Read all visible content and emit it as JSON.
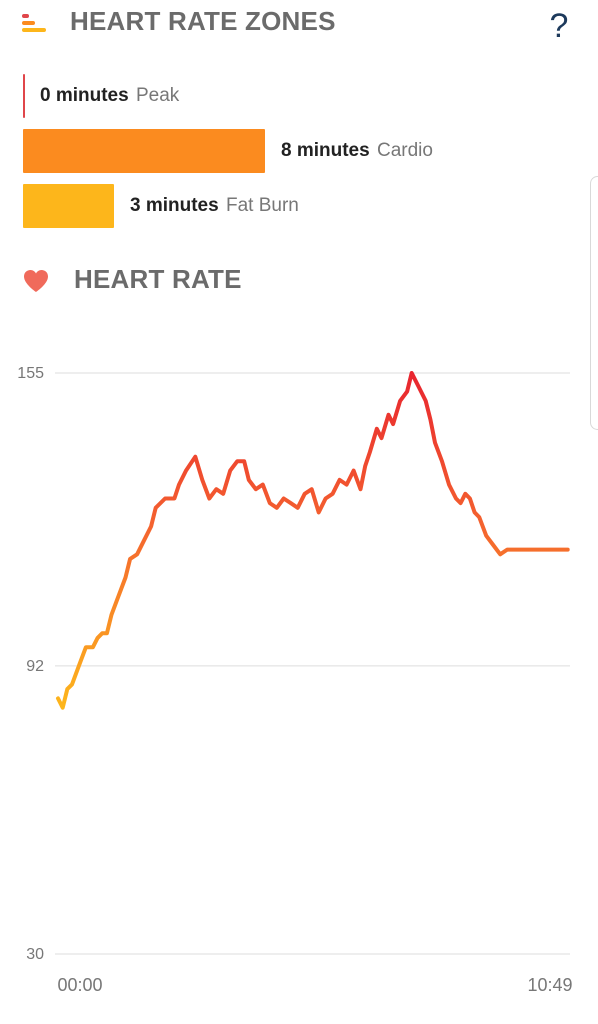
{
  "zones_section": {
    "title": "HEART RATE ZONES",
    "help_label": "?",
    "icon": "zones-icon",
    "zones": [
      {
        "minutes_label": "0 minutes",
        "name": "Peak",
        "minutes": 0,
        "color": "#e0464a"
      },
      {
        "minutes_label": "8 minutes",
        "name": "Cardio",
        "minutes": 8,
        "color": "#fb8b1f"
      },
      {
        "minutes_label": "3 minutes",
        "name": "Fat Burn",
        "minutes": 3,
        "color": "#fdb61b"
      }
    ]
  },
  "heart_section": {
    "title": "HEART RATE",
    "icon": "heart-icon"
  },
  "chart_data": {
    "type": "line",
    "title": "",
    "xlabel": "",
    "ylabel": "",
    "ylim": [
      30,
      155
    ],
    "y_ticks": [
      "155",
      "92",
      "30"
    ],
    "y_tick_values": [
      155,
      92,
      30
    ],
    "x_tick_labels": [
      "00:00",
      "10:49"
    ],
    "x_range_minutes": [
      0,
      11
    ],
    "grid": "horizontal",
    "colors": {
      "low": "#fdb61b",
      "mid": "#f4622f",
      "high": "#e8252f"
    },
    "series": [
      {
        "x": [
          0,
          0.1,
          0.2,
          0.3,
          0.45,
          0.6,
          0.75,
          0.85,
          0.95,
          1.05,
          1.15,
          1.3,
          1.45,
          1.55,
          1.7,
          1.85,
          2.0,
          2.1,
          2.3,
          2.5,
          2.6,
          2.75,
          2.95,
          3.1,
          3.25,
          3.4,
          3.55,
          3.7,
          3.85,
          4.0,
          4.1,
          4.25,
          4.4,
          4.55,
          4.7,
          4.85,
          5.0,
          5.15,
          5.3,
          5.45,
          5.6,
          5.75,
          5.9,
          6.05,
          6.2,
          6.35,
          6.5,
          6.6,
          6.7,
          6.85,
          6.95,
          7.1,
          7.2,
          7.35,
          7.5,
          7.6,
          7.75,
          7.9,
          8.0,
          8.1,
          8.25,
          8.4,
          8.55,
          8.65,
          8.75,
          8.85,
          8.95,
          9.05,
          9.2,
          9.35,
          9.5,
          9.65,
          9.8,
          9.9,
          10.05,
          10.2,
          10.35,
          10.5,
          10.65,
          10.8,
          10.95
        ],
        "y": [
          85,
          83,
          87,
          88,
          92,
          96,
          96,
          98,
          99,
          99,
          103,
          107,
          111,
          115,
          116,
          119,
          122,
          126,
          128,
          128,
          131,
          134,
          137,
          132,
          128,
          130,
          129,
          134,
          136,
          136,
          132,
          130,
          131,
          127,
          126,
          128,
          127,
          126,
          129,
          130,
          125,
          128,
          129,
          132,
          131,
          134,
          130,
          135,
          138,
          143,
          141,
          146,
          144,
          149,
          151,
          155,
          152,
          149,
          145,
          140,
          136,
          131,
          128,
          127,
          129,
          128,
          125,
          124,
          120,
          118,
          116,
          117,
          117,
          117,
          117,
          117,
          117,
          117,
          117,
          117,
          117
        ]
      }
    ]
  }
}
